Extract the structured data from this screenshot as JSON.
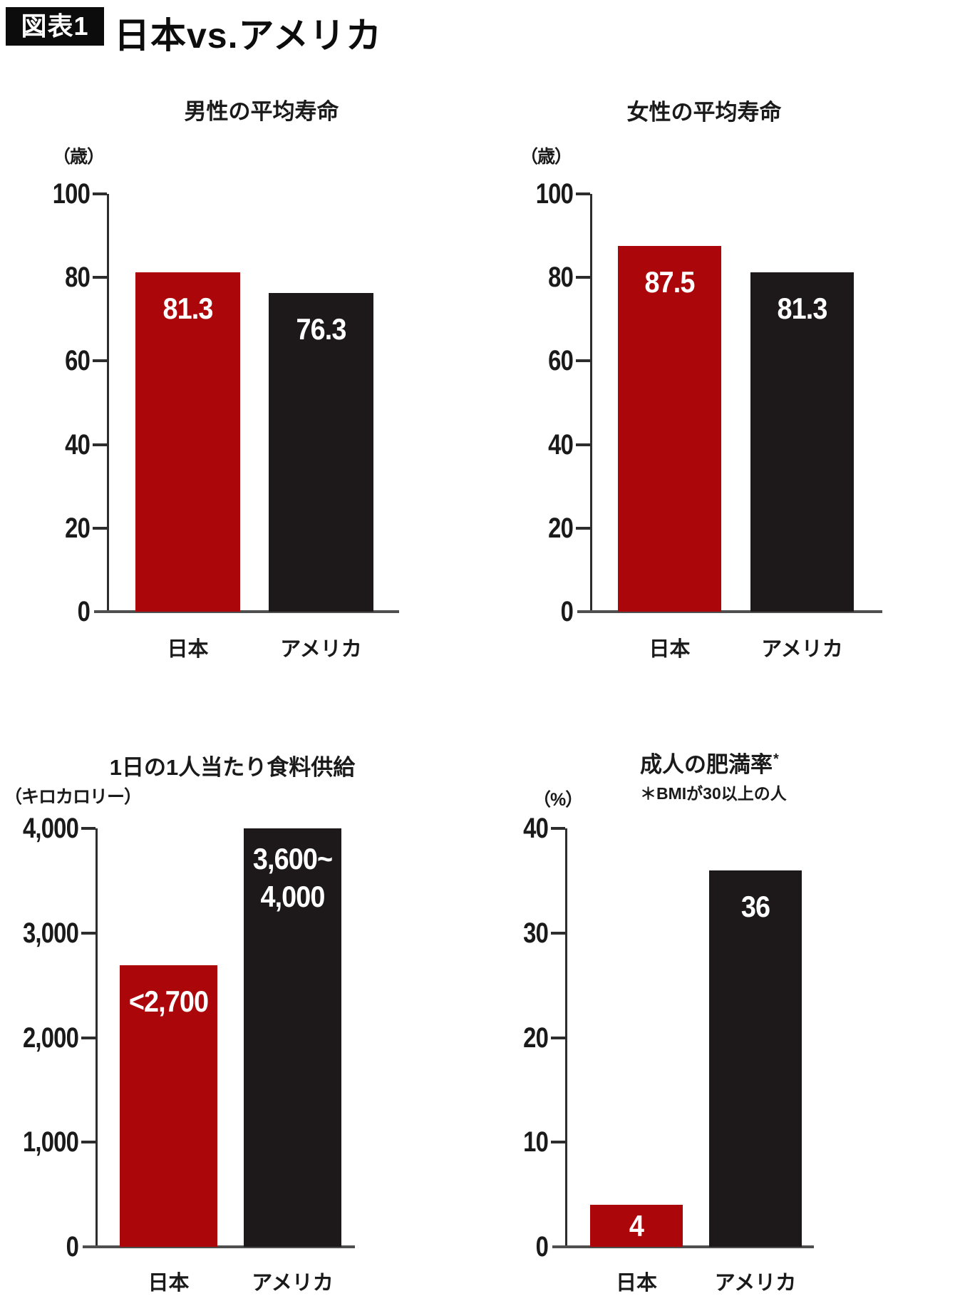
{
  "header": {
    "badge": "図表1",
    "title": "日本vs.アメリカ"
  },
  "colors": {
    "japan": "#ab060a",
    "usa": "#1d191a",
    "text": "#1a1a1a",
    "axis": "#2d2d2d",
    "baseline": "#4f4f4f",
    "value_label": "#ffffff",
    "badge_bg": "#0c0c0c",
    "badge_text": "#ffffff"
  },
  "chart_data": [
    {
      "id": "male-life-expectancy",
      "type": "bar",
      "title": "男性の平均寿命",
      "unit": "（歳）",
      "categories": [
        "日本",
        "アメリカ"
      ],
      "values": [
        81.3,
        76.3
      ],
      "value_labels": [
        "81.3",
        "76.3"
      ],
      "bar_colors": [
        "japan",
        "usa"
      ],
      "ylim": [
        0,
        100
      ],
      "yticks": [
        0,
        20,
        40,
        60,
        80,
        100
      ],
      "ytick_labels": [
        "0",
        "20",
        "40",
        "60",
        "80",
        "100"
      ]
    },
    {
      "id": "female-life-expectancy",
      "type": "bar",
      "title": "女性の平均寿命",
      "unit": "（歳）",
      "categories": [
        "日本",
        "アメリカ"
      ],
      "values": [
        87.5,
        81.3
      ],
      "value_labels": [
        "87.5",
        "81.3"
      ],
      "bar_colors": [
        "japan",
        "usa"
      ],
      "ylim": [
        0,
        100
      ],
      "yticks": [
        0,
        20,
        40,
        60,
        80,
        100
      ],
      "ytick_labels": [
        "0",
        "20",
        "40",
        "60",
        "80",
        "100"
      ]
    },
    {
      "id": "daily-food-supply-per-person",
      "type": "bar",
      "title": "1日の1人当たり食料供給",
      "unit": "（キロカロリー）",
      "categories": [
        "日本",
        "アメリカ"
      ],
      "values": [
        2690,
        4000
      ],
      "value_labels": [
        "<2,700",
        [
          "3,600~",
          "4,000"
        ]
      ],
      "bar_colors": [
        "japan",
        "usa"
      ],
      "ylim": [
        0,
        4000
      ],
      "yticks": [
        0,
        1000,
        2000,
        3000,
        4000
      ],
      "ytick_labels": [
        "0",
        "1,000",
        "2,000",
        "3,000",
        "4,000"
      ]
    },
    {
      "id": "adult-obesity-rate",
      "type": "bar",
      "title": "成人の肥満率",
      "title_sup": "*",
      "subtitle": "＊BMIが30以上の人",
      "unit": "（%）",
      "categories": [
        "日本",
        "アメリカ"
      ],
      "values": [
        4,
        36
      ],
      "value_labels": [
        "4",
        "36"
      ],
      "bar_colors": [
        "japan",
        "usa"
      ],
      "ylim": [
        0,
        40
      ],
      "yticks": [
        0,
        10,
        20,
        30,
        40
      ],
      "ytick_labels": [
        "0",
        "10",
        "20",
        "30",
        "40"
      ]
    }
  ]
}
